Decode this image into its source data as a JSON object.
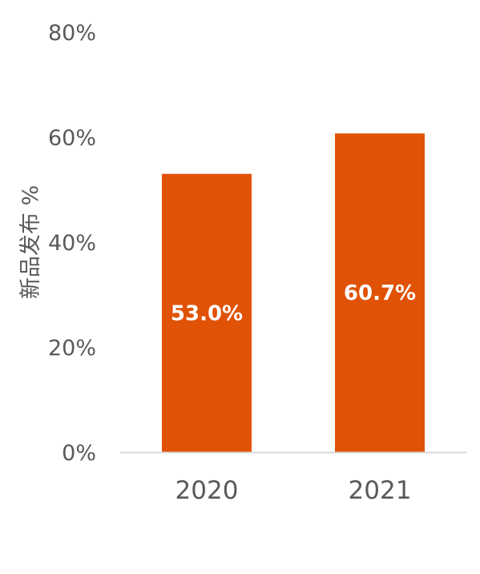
{
  "chart_data": {
    "type": "bar",
    "categories": [
      "2020",
      "2021"
    ],
    "values": [
      53.0,
      60.7
    ],
    "data_labels": [
      "53.0%",
      "60.7%"
    ],
    "title": "",
    "xlabel": "",
    "ylabel": "新品发布 %",
    "ylim": [
      0,
      80
    ],
    "yticks": [
      0,
      20,
      40,
      60,
      80
    ],
    "ytick_labels": [
      "0%",
      "20%",
      "40%",
      "60%",
      "80%"
    ],
    "grid": false,
    "legend": "none",
    "bar_color": "#E05206",
    "axis_color": "#D9D9D9",
    "text_color": "#595959"
  }
}
